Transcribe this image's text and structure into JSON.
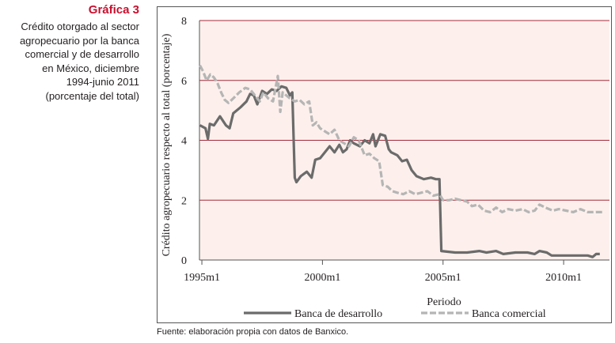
{
  "figure": {
    "label": "Gráfica 3",
    "caption_lines": [
      "Crédito otorgado al sector",
      "agropecuario por la banca",
      "comercial y de desarrollo",
      "en México, diciembre",
      "1994-junio 2011",
      "(porcentaje del total)"
    ],
    "source": "Fuente: elaboración propia con datos de Banxico."
  },
  "colors": {
    "plot_background": "#fdf0ec",
    "gridline": "#a3283a",
    "banca_de_desarrollo": "#6b6b6b",
    "banca_comercial": "#b5b5b5",
    "label_red": "#c8102e"
  },
  "chart_data": {
    "type": "line",
    "xlabel": "Periodo",
    "ylabel": "Crédito agropecuario respecto al total (porcentaje)",
    "xlim": [
      1994.9,
      2011.9
    ],
    "ylim": [
      0,
      8
    ],
    "x_ticks": [
      1995,
      2000,
      2005,
      2010
    ],
    "x_tick_labels": [
      "1995m1",
      "2000m1",
      "2005m1",
      "2010m1"
    ],
    "y_ticks": [
      0,
      2,
      4,
      6,
      8
    ],
    "y_tick_labels": [
      "0",
      "2",
      "4",
      "6",
      "8"
    ],
    "grid": "horizontal",
    "legend_position": "bottom",
    "series": [
      {
        "name": "Banca de desarrollo",
        "style": "solid",
        "points": [
          [
            1994.92,
            4.5
          ],
          [
            1995.15,
            4.4
          ],
          [
            1995.25,
            4.05
          ],
          [
            1995.33,
            4.55
          ],
          [
            1995.5,
            4.5
          ],
          [
            1995.75,
            4.8
          ],
          [
            1996.0,
            4.5
          ],
          [
            1996.15,
            4.4
          ],
          [
            1996.3,
            4.9
          ],
          [
            1996.6,
            5.1
          ],
          [
            1996.85,
            5.3
          ],
          [
            1997.0,
            5.55
          ],
          [
            1997.15,
            5.5
          ],
          [
            1997.3,
            5.2
          ],
          [
            1997.5,
            5.65
          ],
          [
            1997.7,
            5.55
          ],
          [
            1997.9,
            5.7
          ],
          [
            1998.1,
            5.65
          ],
          [
            1998.3,
            5.8
          ],
          [
            1998.5,
            5.75
          ],
          [
            1998.65,
            5.5
          ],
          [
            1998.75,
            5.6
          ],
          [
            1998.85,
            2.75
          ],
          [
            1998.92,
            2.6
          ],
          [
            1999.1,
            2.8
          ],
          [
            1999.35,
            2.95
          ],
          [
            1999.55,
            2.75
          ],
          [
            1999.7,
            3.35
          ],
          [
            1999.9,
            3.4
          ],
          [
            2000.1,
            3.6
          ],
          [
            2000.3,
            3.8
          ],
          [
            2000.5,
            3.6
          ],
          [
            2000.7,
            3.85
          ],
          [
            2000.85,
            3.6
          ],
          [
            2001.0,
            3.7
          ],
          [
            2001.15,
            4.0
          ],
          [
            2001.3,
            3.9
          ],
          [
            2001.55,
            3.8
          ],
          [
            2001.75,
            4.0
          ],
          [
            2001.95,
            3.9
          ],
          [
            2002.1,
            4.2
          ],
          [
            2002.2,
            3.8
          ],
          [
            2002.4,
            4.2
          ],
          [
            2002.6,
            4.15
          ],
          [
            2002.75,
            3.7
          ],
          [
            2002.85,
            3.6
          ],
          [
            2003.1,
            3.5
          ],
          [
            2003.3,
            3.3
          ],
          [
            2003.5,
            3.35
          ],
          [
            2003.7,
            3.0
          ],
          [
            2003.9,
            2.8
          ],
          [
            2004.2,
            2.7
          ],
          [
            2004.5,
            2.75
          ],
          [
            2004.7,
            2.7
          ],
          [
            2004.85,
            2.7
          ],
          [
            2004.93,
            0.3
          ],
          [
            2005.5,
            0.25
          ],
          [
            2006.0,
            0.25
          ],
          [
            2006.5,
            0.3
          ],
          [
            2006.8,
            0.25
          ],
          [
            2007.2,
            0.3
          ],
          [
            2007.5,
            0.2
          ],
          [
            2008.0,
            0.25
          ],
          [
            2008.5,
            0.25
          ],
          [
            2008.8,
            0.2
          ],
          [
            2009.0,
            0.3
          ],
          [
            2009.3,
            0.25
          ],
          [
            2009.5,
            0.15
          ],
          [
            2010.0,
            0.15
          ],
          [
            2010.5,
            0.15
          ],
          [
            2011.0,
            0.15
          ],
          [
            2011.2,
            0.1
          ],
          [
            2011.35,
            0.2
          ],
          [
            2011.5,
            0.2
          ]
        ]
      },
      {
        "name": "Banca comercial",
        "style": "dashed",
        "points": [
          [
            1994.92,
            6.5
          ],
          [
            1995.05,
            6.3
          ],
          [
            1995.2,
            6.0
          ],
          [
            1995.35,
            6.2
          ],
          [
            1995.5,
            6.1
          ],
          [
            1995.65,
            5.9
          ],
          [
            1995.8,
            5.6
          ],
          [
            1995.95,
            5.35
          ],
          [
            1996.1,
            5.25
          ],
          [
            1996.3,
            5.4
          ],
          [
            1996.55,
            5.6
          ],
          [
            1996.8,
            5.75
          ],
          [
            1997.0,
            5.7
          ],
          [
            1997.2,
            5.5
          ],
          [
            1997.4,
            5.3
          ],
          [
            1997.55,
            5.6
          ],
          [
            1997.75,
            5.4
          ],
          [
            1997.95,
            5.3
          ],
          [
            1998.15,
            6.15
          ],
          [
            1998.25,
            4.95
          ],
          [
            1998.35,
            5.6
          ],
          [
            1998.5,
            5.5
          ],
          [
            1998.65,
            5.4
          ],
          [
            1998.85,
            5.3
          ],
          [
            1999.05,
            5.35
          ],
          [
            1999.25,
            5.2
          ],
          [
            1999.45,
            5.3
          ],
          [
            1999.6,
            4.5
          ],
          [
            1999.75,
            4.6
          ],
          [
            1999.9,
            4.4
          ],
          [
            2000.1,
            4.3
          ],
          [
            2000.3,
            4.2
          ],
          [
            2000.5,
            4.35
          ],
          [
            2000.7,
            4.0
          ],
          [
            2000.9,
            3.9
          ],
          [
            2001.1,
            3.8
          ],
          [
            2001.3,
            4.1
          ],
          [
            2001.5,
            4.0
          ],
          [
            2001.75,
            3.5
          ],
          [
            2001.95,
            3.55
          ],
          [
            2002.15,
            3.4
          ],
          [
            2002.35,
            3.3
          ],
          [
            2002.5,
            2.5
          ],
          [
            2002.7,
            2.45
          ],
          [
            2002.9,
            2.3
          ],
          [
            2003.1,
            2.25
          ],
          [
            2003.35,
            2.2
          ],
          [
            2003.6,
            2.3
          ],
          [
            2003.85,
            2.2
          ],
          [
            2004.1,
            2.25
          ],
          [
            2004.35,
            2.3
          ],
          [
            2004.6,
            2.15
          ],
          [
            2004.85,
            2.2
          ],
          [
            2005.0,
            2.0
          ],
          [
            2005.25,
            2.0
          ],
          [
            2005.5,
            2.05
          ],
          [
            2005.75,
            2.0
          ],
          [
            2006.0,
            1.95
          ],
          [
            2006.2,
            1.8
          ],
          [
            2006.45,
            1.85
          ],
          [
            2006.7,
            1.65
          ],
          [
            2006.95,
            1.6
          ],
          [
            2007.2,
            1.75
          ],
          [
            2007.45,
            1.6
          ],
          [
            2007.7,
            1.7
          ],
          [
            2008.0,
            1.65
          ],
          [
            2008.3,
            1.7
          ],
          [
            2008.55,
            1.6
          ],
          [
            2008.8,
            1.65
          ],
          [
            2009.0,
            1.85
          ],
          [
            2009.25,
            1.75
          ],
          [
            2009.55,
            1.65
          ],
          [
            2009.8,
            1.7
          ],
          [
            2010.1,
            1.65
          ],
          [
            2010.4,
            1.6
          ],
          [
            2010.7,
            1.7
          ],
          [
            2011.0,
            1.6
          ],
          [
            2011.3,
            1.6
          ],
          [
            2011.6,
            1.6
          ]
        ]
      }
    ]
  }
}
